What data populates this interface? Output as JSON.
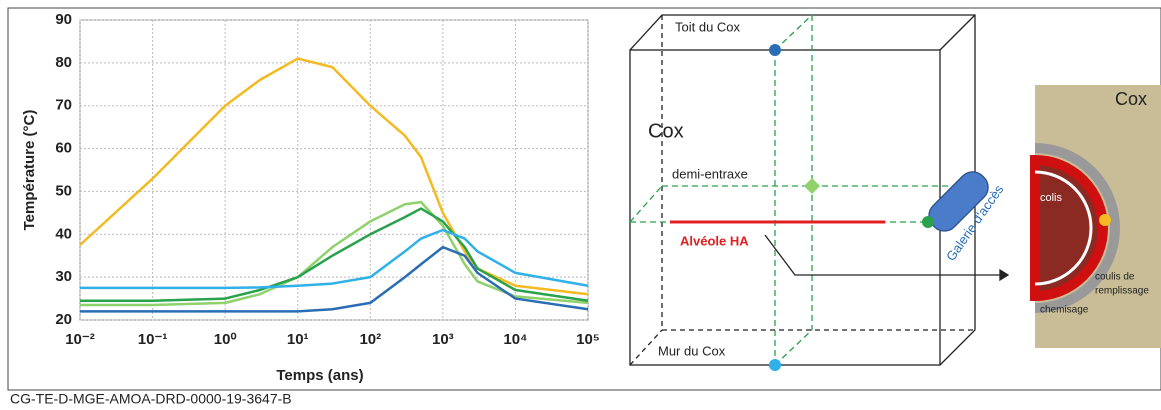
{
  "chart_data": {
    "type": "line",
    "x_label": "Temps (ans)",
    "y_label": "Température (°C)",
    "xscale": "log",
    "grid": true,
    "xlim": [
      0.01,
      100000
    ],
    "ylim": [
      20,
      90
    ],
    "xticks": [
      {
        "value": 0.01,
        "label": "10⁻²"
      },
      {
        "value": 0.1,
        "label": "10⁻¹"
      },
      {
        "value": 1,
        "label": "10⁰"
      },
      {
        "value": 10,
        "label": "10¹"
      },
      {
        "value": 100,
        "label": "10²"
      },
      {
        "value": 1000,
        "label": "10³"
      },
      {
        "value": 10000,
        "label": "10⁴"
      },
      {
        "value": 100000,
        "label": "10⁵"
      }
    ],
    "yticks": [
      20,
      30,
      40,
      50,
      60,
      70,
      80,
      90
    ],
    "x": [
      0.01,
      0.1,
      1,
      3,
      10,
      30,
      100,
      300,
      500,
      1000,
      2000,
      3000,
      10000,
      100000
    ],
    "series": [
      {
        "color": "#f5b921",
        "values": [
          37.5,
          53,
          70,
          76,
          81,
          79,
          70,
          63,
          58,
          45,
          36,
          32,
          28,
          26
        ]
      },
      {
        "color": "#8fd16a",
        "values": [
          23.5,
          23.5,
          24,
          26,
          30,
          37,
          43,
          47,
          47.5,
          42,
          33,
          29,
          25.5,
          24
        ]
      },
      {
        "color": "#2aa14b",
        "values": [
          24.5,
          24.5,
          25,
          27,
          30,
          35,
          40,
          44,
          46,
          43,
          37,
          32,
          27,
          24.5
        ]
      },
      {
        "color": "#2fb0e8",
        "values": [
          27.5,
          27.5,
          27.5,
          27.6,
          28,
          28.5,
          30,
          36,
          39,
          41,
          39,
          36,
          31,
          28
        ]
      },
      {
        "color": "#2a6db5",
        "values": [
          22,
          22,
          22,
          22,
          22,
          22.5,
          24,
          30,
          33,
          37,
          35,
          31,
          25,
          22.5
        ]
      }
    ]
  },
  "diagram": {
    "roof": "Toit du Cox",
    "host": "Cox",
    "half_spacing": "demi-entraxe",
    "cell": "Alvéole HA",
    "gallery": "Galerie d'accès",
    "floor": "Mur du Cox",
    "detail": {
      "host": "Cox",
      "package": "colis",
      "grout": [
        "coulis de",
        "remplissage"
      ],
      "liner": "chemisage"
    }
  },
  "footer": "CG-TE-D-MGE-AMOA-DRD-0000-19-3647-B"
}
